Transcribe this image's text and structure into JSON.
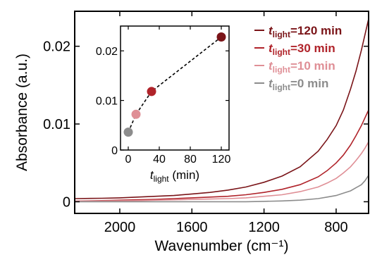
{
  "chart_data": [
    {
      "type": "line",
      "id": "main",
      "xlabel": "Wavenumber (cm⁻¹)",
      "ylabel": "Absorbance (a.u.)",
      "xlim": [
        2250,
        620
      ],
      "ylim": [
        -0.0015,
        0.0245
      ],
      "x_reversed": true,
      "xticks": [
        2000,
        1600,
        1200,
        800
      ],
      "xtick_labels": [
        "2000",
        "1600",
        "1200",
        "800"
      ],
      "yticks": [
        0,
        0.01,
        0.02
      ],
      "ytick_labels": [
        "0",
        "0.01",
        "0.02"
      ],
      "legend_position": "top-right",
      "series": [
        {
          "name_prefix": "t",
          "name_sub": "light",
          "name_suffix": "=120 min",
          "color": "#7a1418",
          "x": [
            2250,
            2100,
            2000,
            1900,
            1800,
            1700,
            1600,
            1500,
            1400,
            1300,
            1200,
            1100,
            1000,
            900,
            850,
            800,
            760,
            720,
            690,
            660,
            640,
            620
          ],
          "y": [
            0.0004,
            0.00045,
            0.0005,
            0.0006,
            0.0007,
            0.0008,
            0.001,
            0.0012,
            0.0015,
            0.0019,
            0.0025,
            0.0033,
            0.0045,
            0.0065,
            0.008,
            0.0098,
            0.0118,
            0.0145,
            0.0168,
            0.0195,
            0.0215,
            0.0235
          ]
        },
        {
          "name_prefix": "t",
          "name_sub": "light",
          "name_suffix": "=30 min",
          "color": "#b0232a",
          "x": [
            2250,
            2100,
            2000,
            1900,
            1800,
            1700,
            1600,
            1500,
            1400,
            1300,
            1200,
            1100,
            1000,
            900,
            850,
            800,
            760,
            720,
            690,
            660,
            640,
            620
          ],
          "y": [
            0.0001,
            0.00015,
            0.0002,
            0.00025,
            0.0003,
            0.0004,
            0.0005,
            0.0006,
            0.0007,
            0.0009,
            0.0012,
            0.0016,
            0.0022,
            0.0032,
            0.004,
            0.005,
            0.006,
            0.0073,
            0.0085,
            0.0098,
            0.0108,
            0.0118
          ]
        },
        {
          "name_prefix": "t",
          "name_sub": "light",
          "name_suffix": "=10 min",
          "color": "#df8f96",
          "x": [
            2250,
            2100,
            2000,
            1900,
            1800,
            1700,
            1600,
            1500,
            1400,
            1300,
            1200,
            1100,
            1000,
            900,
            850,
            800,
            760,
            720,
            690,
            660,
            640,
            620
          ],
          "y": [
            0.0001,
            0.0001,
            0.00012,
            0.00015,
            0.0002,
            0.00025,
            0.0003,
            0.00035,
            0.0004,
            0.0005,
            0.0007,
            0.0009,
            0.0013,
            0.0019,
            0.0024,
            0.003,
            0.0037,
            0.0045,
            0.0053,
            0.0062,
            0.0069,
            0.0077
          ]
        },
        {
          "name_prefix": "t",
          "name_sub": "light",
          "name_suffix": "=0 min",
          "color": "#8c8c8c",
          "x": [
            2250,
            2100,
            2000,
            1900,
            1800,
            1700,
            1600,
            1500,
            1400,
            1300,
            1200,
            1100,
            1000,
            900,
            850,
            800,
            760,
            720,
            690,
            660,
            640,
            620
          ],
          "y": [
            0.0,
            0.0,
            0.0,
            0.0,
            0.0,
            0.0,
            0.0,
            0.0,
            0.0,
            0.0,
            5e-05,
            0.0001,
            0.0002,
            0.0004,
            0.0006,
            0.0008,
            0.0011,
            0.0014,
            0.0018,
            0.0022,
            0.0027,
            0.0034
          ]
        }
      ]
    },
    {
      "type": "scatter",
      "id": "inset",
      "xlabel_prefix": "t",
      "xlabel_sub": "light",
      "xlabel_suffix": " (min)",
      "xlim": [
        -10,
        130
      ],
      "ylim": [
        0,
        0.025
      ],
      "xticks": [
        0,
        40,
        80,
        120
      ],
      "xtick_labels": [
        "0",
        "40",
        "80",
        "120"
      ],
      "yticks": [
        0,
        0.01,
        0.02
      ],
      "ytick_labels": [
        "0",
        "0.01",
        "0.02"
      ],
      "connector": "dashed",
      "points": [
        {
          "x": 0,
          "y": 0.0036,
          "color": "#8c8c8c"
        },
        {
          "x": 10,
          "y": 0.0072,
          "color": "#df8f96"
        },
        {
          "x": 30,
          "y": 0.0118,
          "color": "#b0232a"
        },
        {
          "x": 120,
          "y": 0.0228,
          "color": "#7a1418"
        }
      ]
    }
  ]
}
